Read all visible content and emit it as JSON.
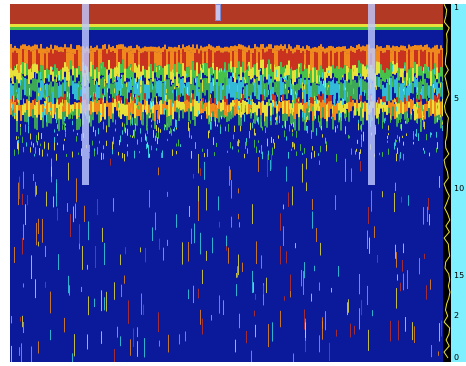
{
  "window": {
    "title": ""
  },
  "echogram": {
    "background_color": "#0a1a9a",
    "colors": {
      "surface": "#b23a24",
      "deep_red": "#c8321e",
      "orange": "#f08a1c",
      "yellow": "#e8e13a",
      "green": "#46c24a",
      "cyan": "#3ad7e0",
      "blue": "#0a1a9a",
      "marker": "#c0c8ff"
    },
    "markers": [
      {
        "label": "ping-marker-a"
      },
      {
        "label": "ping-marker-b"
      }
    ]
  },
  "depth_scale": {
    "background_color": "#7ff0ff",
    "ticks": [
      {
        "label": "1"
      },
      {
        "label": "5"
      },
      {
        "label": "10"
      },
      {
        "label": "15"
      },
      {
        "label": "2"
      },
      {
        "label": "0"
      }
    ]
  }
}
